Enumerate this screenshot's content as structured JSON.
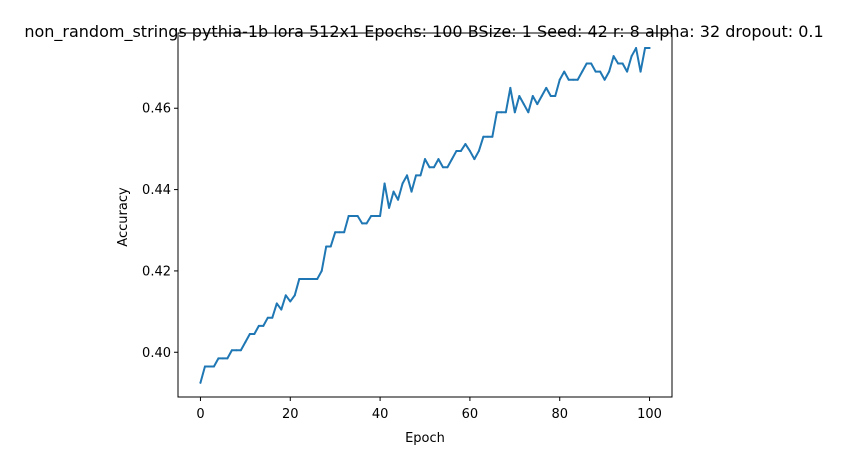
{
  "chart_data": {
    "type": "line",
    "title": "non_random_strings pythia-1b lora 512x1 Epochs: 100 BSize: 1 Seed: 42 r: 8 alpha: 32 dropout: 0.1",
    "xlabel": "Epoch",
    "ylabel": "Accuracy",
    "xlim": [
      -5,
      105
    ],
    "ylim": [
      0.389,
      0.4785
    ],
    "xticks": [
      0,
      20,
      40,
      60,
      80,
      100
    ],
    "yticks": [
      0.4,
      0.42,
      0.44,
      0.46
    ],
    "ytick_labels": [
      "0.40",
      "0.42",
      "0.44",
      "0.46"
    ],
    "grid": false,
    "line_color": "#1f77b4",
    "series": [
      {
        "x": [
          0,
          1,
          2,
          3,
          4,
          5,
          6,
          7,
          8,
          9,
          10,
          11,
          12,
          13,
          14,
          15,
          16,
          17,
          18,
          19,
          20,
          21,
          22,
          23,
          24,
          25,
          26,
          27,
          28,
          29,
          30,
          31,
          32,
          33,
          34,
          35,
          36,
          37,
          38,
          39,
          40,
          41,
          42,
          43,
          44,
          45,
          46,
          47,
          48,
          49,
          50,
          51,
          52,
          53,
          54,
          55,
          56,
          57,
          58,
          59,
          60,
          61,
          62,
          63,
          64,
          65,
          66,
          67,
          68,
          69,
          70,
          71,
          72,
          73,
          74,
          75,
          76,
          77,
          78,
          79,
          80,
          81,
          82,
          83,
          84,
          85,
          86,
          87,
          88,
          89,
          90,
          91,
          92,
          93,
          94,
          95,
          96,
          97,
          98,
          99,
          100
        ],
        "y": [
          0.3925,
          0.3965,
          0.3965,
          0.3965,
          0.3985,
          0.3985,
          0.3985,
          0.4005,
          0.4005,
          0.4005,
          0.4025,
          0.4045,
          0.4045,
          0.4065,
          0.4065,
          0.4085,
          0.4085,
          0.412,
          0.4105,
          0.414,
          0.4125,
          0.414,
          0.418,
          0.418,
          0.418,
          0.418,
          0.418,
          0.42,
          0.426,
          0.426,
          0.4295,
          0.4295,
          0.4295,
          0.4335,
          0.4335,
          0.4335,
          0.4317,
          0.4317,
          0.4335,
          0.4335,
          0.4335,
          0.4415,
          0.4355,
          0.4395,
          0.4375,
          0.4415,
          0.4435,
          0.4395,
          0.4435,
          0.4435,
          0.4475,
          0.4455,
          0.4455,
          0.4475,
          0.4455,
          0.4455,
          0.4475,
          0.4495,
          0.4495,
          0.4512,
          0.4495,
          0.4475,
          0.4495,
          0.453,
          0.453,
          0.453,
          0.459,
          0.459,
          0.459,
          0.465,
          0.459,
          0.463,
          0.461,
          0.459,
          0.463,
          0.461,
          0.463,
          0.465,
          0.463,
          0.463,
          0.467,
          0.469,
          0.467,
          0.467,
          0.467,
          0.469,
          0.471,
          0.471,
          0.469,
          0.469,
          0.467,
          0.469,
          0.4728,
          0.471,
          0.471,
          0.469,
          0.4728,
          0.4748,
          0.469,
          0.4748,
          0.4748
        ]
      }
    ]
  }
}
